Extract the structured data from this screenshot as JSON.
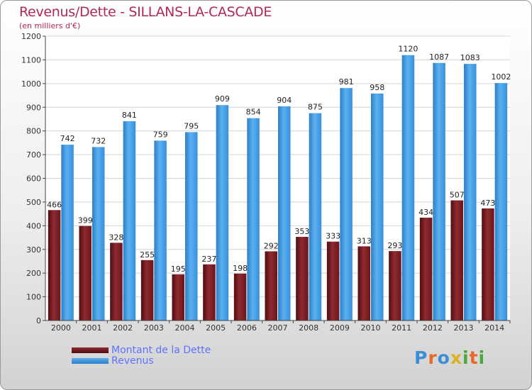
{
  "title": "Revenus/Dette - SILLANS-LA-CASCADE",
  "subtitle": "(en milliers d'€)",
  "logo_text": "Proxiti",
  "colors": {
    "dette": "#7a1a1f",
    "revenus": "#3d97e0",
    "title": "#b0285a",
    "legend_text": "#5b73ff"
  },
  "legend": [
    {
      "label": "Montant de la Dette",
      "color": "#7a1a1f"
    },
    {
      "label": "Revenus",
      "color": "#3d97e0"
    }
  ],
  "chart_data": {
    "type": "bar",
    "title": "Revenus/Dette - SILLANS-LA-CASCADE",
    "subtitle": "(en milliers d'€)",
    "categories": [
      "2000",
      "2001",
      "2002",
      "2003",
      "2004",
      "2005",
      "2006",
      "2007",
      "2008",
      "2009",
      "2010",
      "2011",
      "2012",
      "2013",
      "2014"
    ],
    "series": [
      {
        "name": "Montant de la Dette",
        "values": [
          466,
          399,
          328,
          255,
          195,
          237,
          198,
          292,
          353,
          333,
          313,
          293,
          434,
          507,
          473
        ]
      },
      {
        "name": "Revenus",
        "values": [
          742,
          732,
          841,
          759,
          795,
          909,
          854,
          904,
          875,
          981,
          958,
          1120,
          1087,
          1083,
          1002
        ]
      }
    ],
    "ylim": [
      0,
      1200
    ],
    "yticks": [
      0,
      100,
      200,
      300,
      400,
      500,
      600,
      700,
      800,
      900,
      1000,
      1100,
      1200
    ],
    "grid": true,
    "legend_position": "bottom-left"
  }
}
